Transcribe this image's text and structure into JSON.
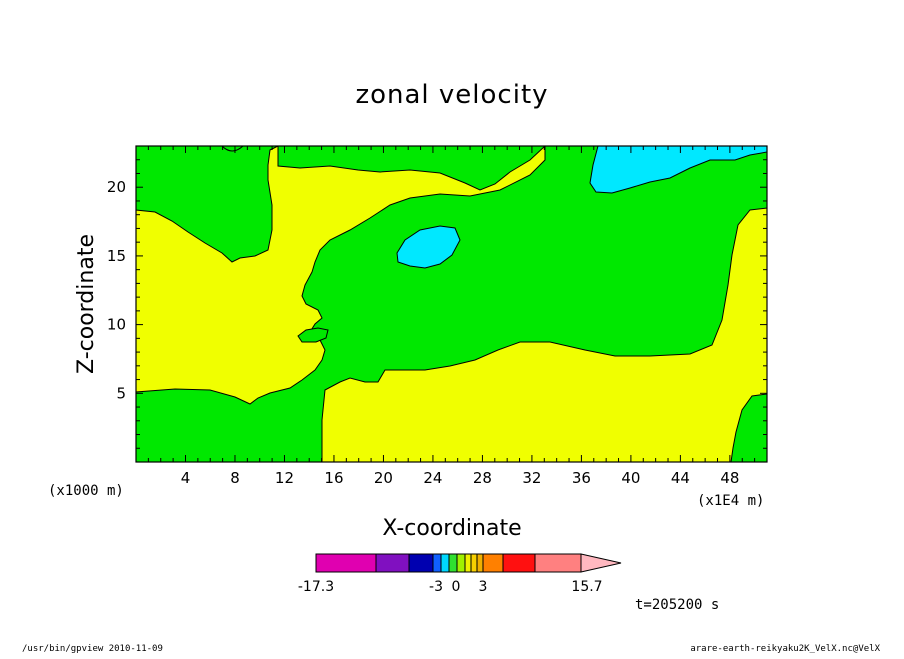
{
  "chart_data": {
    "type": "heatmap",
    "title": "zonal velocity",
    "xlabel": "X-coordinate",
    "ylabel": "Z-coordinate",
    "x_unit": "(x1E4 m)",
    "y_unit": "(x1000 m)",
    "x_ticks": [
      "4",
      "8",
      "12",
      "16",
      "20",
      "24",
      "28",
      "32",
      "36",
      "40",
      "44",
      "48"
    ],
    "y_ticks": [
      "5",
      "10",
      "15",
      "20"
    ],
    "xlim": [
      0,
      51
    ],
    "ylim": [
      0,
      23
    ],
    "colorbar": {
      "labels": [
        "-17.3",
        "-3",
        "0",
        "3",
        "15.7"
      ],
      "colors": [
        "#e000b0",
        "#8010c0",
        "#0000b0",
        "#1060ff",
        "#00d8ff",
        "#30e030",
        "#a0f000",
        "#f0f000",
        "#f8d000",
        "#f0b000",
        "#ff8000",
        "#ff1010",
        "#ff8080",
        "#ffb8c0"
      ]
    },
    "regions_legend": {
      "yellow": "#f0ff00",
      "green": "#00e800",
      "cyan": "#00e8ff"
    }
  },
  "time_label": "t=205200 s",
  "footer_left": "/usr/bin/gpview   2010-11-09",
  "footer_right": "arare-earth-reikyaku2K_VelX.nc@VelX"
}
